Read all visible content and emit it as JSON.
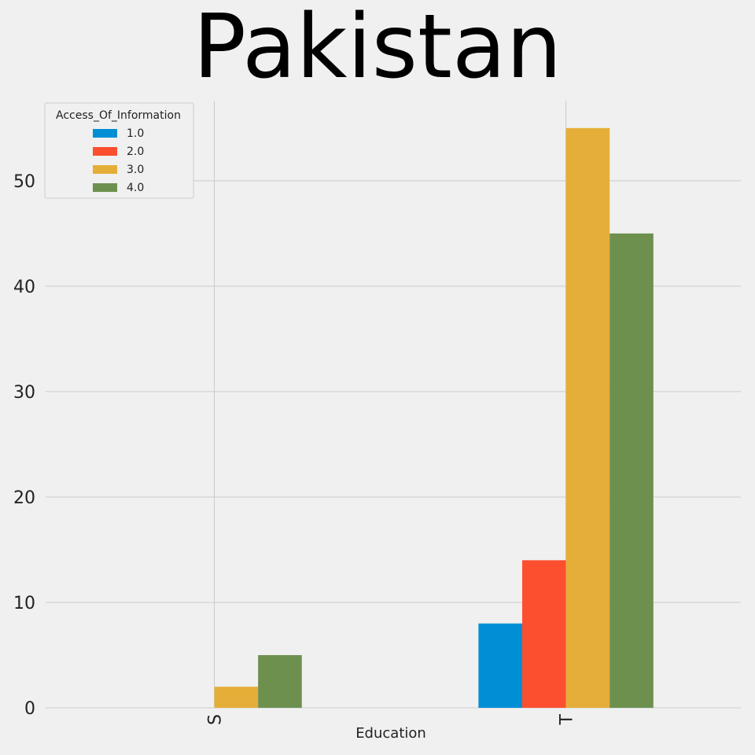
{
  "chart_data": {
    "type": "bar",
    "title": "Pakistan",
    "xlabel": "Education",
    "ylabel": "",
    "categories": [
      "S",
      "T"
    ],
    "series": [
      {
        "name": "1.0",
        "values": [
          0,
          8
        ],
        "color": "#008fd5"
      },
      {
        "name": "2.0",
        "values": [
          0,
          14
        ],
        "color": "#fc4f30"
      },
      {
        "name": "3.0",
        "values": [
          2,
          55
        ],
        "color": "#e5ae38"
      },
      {
        "name": "4.0",
        "values": [
          5,
          45
        ],
        "color": "#6d904f"
      }
    ],
    "ylim": [
      0,
      57.6
    ],
    "yticks": [
      0,
      10,
      20,
      30,
      40,
      50
    ],
    "grid": true,
    "legend": {
      "title": "Access_Of_Information",
      "placement": "top-left"
    }
  }
}
